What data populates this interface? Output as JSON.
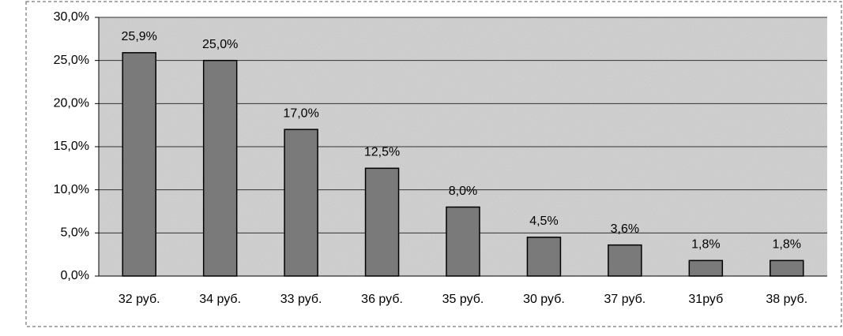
{
  "chart_data": {
    "type": "bar",
    "categories": [
      "32 руб.",
      "34 руб.",
      "33 руб.",
      "36 руб.",
      "35 руб.",
      "30 руб.",
      "37 руб.",
      "31руб",
      "38 руб."
    ],
    "values": [
      25.9,
      25.0,
      17.0,
      12.5,
      8.0,
      4.5,
      3.6,
      1.8,
      1.8
    ],
    "value_labels": [
      "25,9%",
      "25,0%",
      "17,0%",
      "12,5%",
      "8,0%",
      "4,5%",
      "3,6%",
      "1,8%",
      "1,8%"
    ],
    "color": "#7a7a7a",
    "ylim": [
      0,
      30
    ],
    "yticks": [
      {
        "value": 0,
        "label": "0,0%"
      },
      {
        "value": 5,
        "label": "5,0%"
      },
      {
        "value": 10,
        "label": "10,0%"
      },
      {
        "value": 15,
        "label": "15,0%"
      },
      {
        "value": 20,
        "label": "20,0%"
      },
      {
        "value": 25,
        "label": "25,0%"
      },
      {
        "value": 30,
        "label": "30,0%"
      }
    ],
    "grid": true
  }
}
